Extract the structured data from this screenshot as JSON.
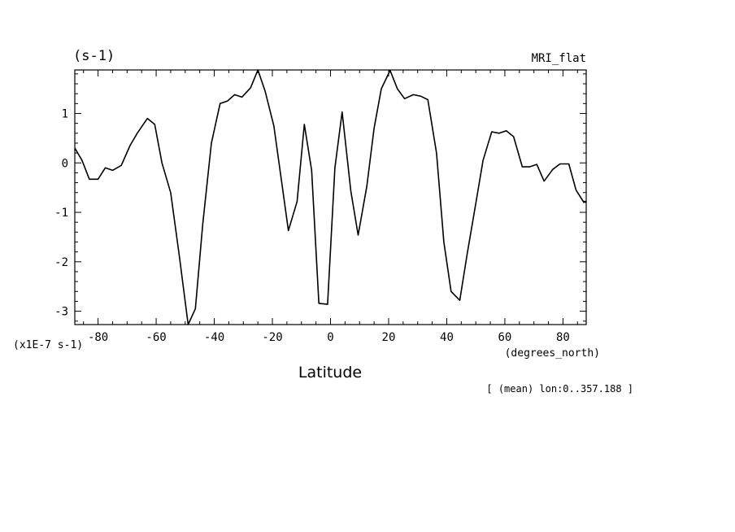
{
  "chart_data": {
    "type": "line",
    "title_left": "(s-1)",
    "title_right": "MRI_flat",
    "xlabel": "Latitude",
    "x_units": "(degrees_north)",
    "y_scale_note": "(x1E-7 s-1)",
    "annotation": "[ (mean) lon:0..357.188 ]",
    "xlim": [
      -88,
      88
    ],
    "ylim": [
      -3.27,
      1.88
    ],
    "x_ticks": [
      -80,
      -60,
      -40,
      -20,
      0,
      20,
      40,
      60,
      80
    ],
    "x_tick_labels": [
      "-80",
      "-60",
      "-40",
      "-20",
      "0",
      "20",
      "40",
      "60",
      "80"
    ],
    "y_ticks": [
      -3,
      -2,
      -1,
      0,
      1
    ],
    "y_tick_labels": [
      "-3",
      "-2",
      "-1",
      "0",
      "1"
    ],
    "grid": false,
    "color": "#000000",
    "series": [
      {
        "x": [
          -88,
          -85.5,
          -83,
          -80,
          -77.5,
          -75,
          -72,
          -69,
          -66.5,
          -63,
          -60.5,
          -58,
          -55,
          -52,
          -49,
          -46.5,
          -44,
          -41,
          -38,
          -35.5,
          -33,
          -30.5,
          -27.5,
          -25,
          -22.5,
          -19.5,
          -17,
          -14.5,
          -11.5,
          -9,
          -6.5,
          -4,
          -1,
          1.5,
          4,
          7,
          9.5,
          12.5,
          15,
          17.5,
          20.5,
          23,
          25.5,
          28.5,
          31,
          33.5,
          36.5,
          39,
          41.5,
          44.5,
          47,
          50,
          52.5,
          55.5,
          58,
          60.5,
          63,
          66,
          68.5,
          71,
          73.5,
          76.5,
          79,
          82,
          84.5,
          87,
          88
        ],
        "y": [
          0.3,
          0.05,
          -0.33,
          -0.33,
          -0.1,
          -0.15,
          -0.05,
          0.35,
          0.6,
          0.9,
          0.78,
          0.0,
          -0.6,
          -1.9,
          -3.27,
          -2.95,
          -1.25,
          0.4,
          1.2,
          1.25,
          1.38,
          1.33,
          1.52,
          1.88,
          1.45,
          0.75,
          -0.3,
          -1.37,
          -0.78,
          0.78,
          -0.15,
          -2.84,
          -2.86,
          -0.1,
          1.03,
          -0.57,
          -1.46,
          -0.47,
          0.7,
          1.5,
          1.87,
          1.5,
          1.3,
          1.38,
          1.35,
          1.28,
          0.2,
          -1.6,
          -2.6,
          -2.78,
          -1.85,
          -0.82,
          0.05,
          0.63,
          0.6,
          0.65,
          0.53,
          -0.08,
          -0.08,
          -0.03,
          -0.37,
          -0.13,
          -0.02,
          -0.02,
          -0.55,
          -0.78,
          -0.78
        ]
      }
    ]
  }
}
